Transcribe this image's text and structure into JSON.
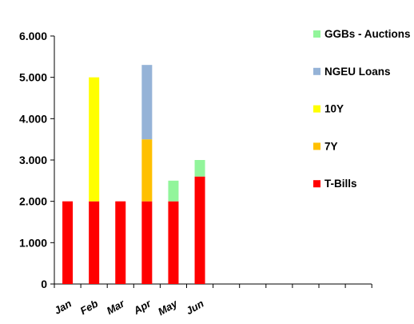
{
  "chart_data": {
    "type": "bar",
    "stacked": true,
    "categories": [
      "Jan",
      "Feb",
      "Mar",
      "Apr",
      "May",
      "Jun"
    ],
    "ylim": [
      0,
      6000
    ],
    "yticks": [
      0,
      1000,
      2000,
      3000,
      4000,
      5000,
      6000
    ],
    "ytick_labels": [
      "0",
      "1.000",
      "2.000",
      "3.000",
      "4.000",
      "5.000",
      "6.000"
    ],
    "grid": false,
    "legend_position": "right",
    "series": [
      {
        "name": "T-Bills",
        "color": "#ff0000",
        "values": [
          2000,
          2000,
          2000,
          2000,
          2000,
          2600
        ]
      },
      {
        "name": "7Y",
        "color": "#ffc000",
        "values": [
          0,
          0,
          0,
          1500,
          0,
          0
        ]
      },
      {
        "name": "10Y",
        "color": "#ffff00",
        "values": [
          0,
          3000,
          0,
          0,
          0,
          0
        ]
      },
      {
        "name": "NGEU Loans",
        "color": "#95b3d7",
        "values": [
          0,
          0,
          0,
          1800,
          0,
          0
        ]
      },
      {
        "name": "GGBs - Auctions",
        "color": "#92f59b",
        "values": [
          0,
          0,
          0,
          0,
          500,
          400
        ]
      }
    ],
    "legend_order": [
      "GGBs - Auctions",
      "NGEU Loans",
      "10Y",
      "7Y",
      "T-Bills"
    ]
  }
}
